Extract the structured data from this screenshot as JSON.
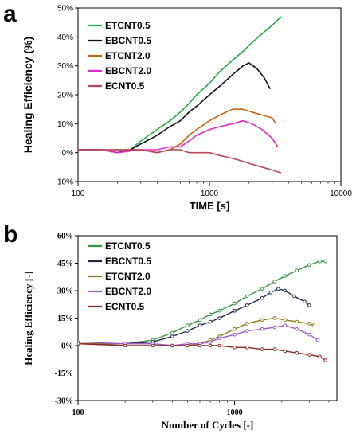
{
  "chart_data": [
    {
      "panel": "a",
      "type": "line",
      "xlabel": "TIME [s]",
      "ylabel": "Healing Efficiency (%)",
      "xscale": "log",
      "xlim": [
        100,
        10000
      ],
      "ylim": [
        -10,
        50
      ],
      "xticks": [
        100,
        1000,
        10000
      ],
      "xtick_labels": [
        "100",
        "1000",
        "10000"
      ],
      "yticks": [
        -10,
        0,
        10,
        20,
        30,
        40,
        50
      ],
      "ytick_labels": [
        "-10%",
        "0%",
        "10%",
        "20%",
        "30%",
        "40%",
        "50%"
      ],
      "legend_position": "top-left",
      "grid": false,
      "series": [
        {
          "name": "ETCNT0.5",
          "color": "#22aa44",
          "x": [
            100,
            150,
            200,
            250,
            300,
            400,
            500,
            600,
            700,
            800,
            1000,
            1200,
            1500,
            1800,
            2100,
            2500,
            3000,
            3500
          ],
          "y": [
            1,
            1,
            0,
            1,
            4,
            8,
            11,
            14,
            17,
            20,
            24,
            28,
            32,
            35,
            38,
            41,
            44,
            47
          ]
        },
        {
          "name": "EBCNT0.5",
          "color": "#111111",
          "x": [
            100,
            150,
            200,
            250,
            300,
            400,
            500,
            600,
            700,
            800,
            1000,
            1200,
            1500,
            1800,
            2000,
            2300,
            2600,
            2900
          ],
          "y": [
            1,
            1,
            0,
            1,
            3,
            6,
            9,
            11,
            14,
            16,
            20,
            23,
            27,
            30,
            31,
            29,
            26,
            22
          ]
        },
        {
          "name": "ETCNT2.0",
          "color": "#c86414",
          "x": [
            100,
            150,
            200,
            300,
            400,
            500,
            600,
            700,
            800,
            1000,
            1200,
            1500,
            1800,
            2100,
            2500,
            3000,
            3200
          ],
          "y": [
            1,
            1,
            1,
            1,
            0,
            1,
            3,
            6,
            8,
            11,
            13,
            15,
            15,
            14,
            13,
            12,
            10
          ]
        },
        {
          "name": "EBCNT2.0",
          "color": "#e22ac8",
          "x": [
            100,
            150,
            200,
            300,
            400,
            500,
            600,
            700,
            800,
            1000,
            1200,
            1500,
            1800,
            2100,
            2500,
            3000,
            3300
          ],
          "y": [
            1,
            1,
            0,
            1,
            1,
            2,
            2,
            4,
            6,
            8,
            9,
            10,
            11,
            10,
            8,
            5,
            2
          ]
        },
        {
          "name": "ECNT0.5",
          "color": "#b4465a",
          "x": [
            100,
            150,
            200,
            300,
            400,
            500,
            600,
            700,
            800,
            1000,
            1200,
            1500,
            1800,
            2100,
            2500,
            3000,
            3500
          ],
          "y": [
            1,
            1,
            1,
            1,
            0,
            1,
            1,
            0,
            0,
            0,
            -1,
            -2,
            -3,
            -4,
            -5,
            -6,
            -7
          ]
        }
      ]
    },
    {
      "panel": "b",
      "type": "line",
      "xlabel": "Number of Cycles [-]",
      "ylabel": "Healing Efficiency [-]",
      "xscale": "log",
      "xlim": [
        100,
        4500
      ],
      "ylim": [
        -30,
        60
      ],
      "xticks": [
        100,
        1000
      ],
      "xtick_labels": [
        "100",
        "1000"
      ],
      "yticks": [
        -30,
        -15,
        0,
        15,
        30,
        45,
        60
      ],
      "ytick_labels": [
        "-30%",
        "-15%",
        "0%",
        "15%",
        "30%",
        "45%",
        "60%"
      ],
      "legend_position": "top-left",
      "grid": false,
      "series": [
        {
          "name": "ETCNT0.5",
          "color": "#339944",
          "x": [
            100,
            200,
            300,
            400,
            500,
            600,
            700,
            800,
            1000,
            1200,
            1500,
            1800,
            2100,
            2500,
            3000,
            3500,
            3800
          ],
          "y": [
            1,
            1,
            3,
            7,
            11,
            14,
            17,
            19,
            23,
            27,
            31,
            35,
            38,
            41,
            44,
            46,
            46
          ]
        },
        {
          "name": "EBCNT0.5",
          "color": "#1e2a44",
          "x": [
            100,
            200,
            300,
            400,
            500,
            600,
            700,
            800,
            1000,
            1200,
            1500,
            1700,
            1900,
            2100,
            2400,
            2800,
            3000
          ],
          "y": [
            1,
            1,
            2,
            5,
            8,
            11,
            13,
            15,
            19,
            22,
            26,
            29,
            31,
            30,
            27,
            24,
            22
          ]
        },
        {
          "name": "ETCNT2.0",
          "color": "#8c7a14",
          "x": [
            100,
            200,
            300,
            400,
            500,
            600,
            700,
            800,
            1000,
            1200,
            1500,
            1800,
            2100,
            2500,
            3000,
            3200
          ],
          "y": [
            1,
            1,
            1,
            0,
            0,
            1,
            3,
            5,
            9,
            12,
            14,
            15,
            14,
            13,
            12,
            11
          ]
        },
        {
          "name": "EBCNT2.0",
          "color": "#a05ad2",
          "x": [
            100,
            200,
            300,
            400,
            500,
            600,
            700,
            800,
            1000,
            1200,
            1500,
            1800,
            2100,
            2500,
            3000,
            3400
          ],
          "y": [
            2,
            1,
            1,
            0,
            1,
            1,
            2,
            4,
            6,
            8,
            9,
            10,
            11,
            9,
            6,
            3
          ]
        },
        {
          "name": "ECNT0.5",
          "color": "#8c2a28",
          "x": [
            100,
            200,
            300,
            400,
            500,
            600,
            700,
            800,
            1000,
            1200,
            1500,
            1800,
            2100,
            2500,
            3000,
            3500,
            3800
          ],
          "y": [
            1,
            0,
            0,
            0,
            0,
            0,
            0,
            0,
            -1,
            -1,
            -2,
            -2,
            -3,
            -4,
            -5,
            -6,
            -8
          ]
        }
      ]
    }
  ],
  "labels": {
    "panel_a": "a",
    "panel_b": "b"
  }
}
